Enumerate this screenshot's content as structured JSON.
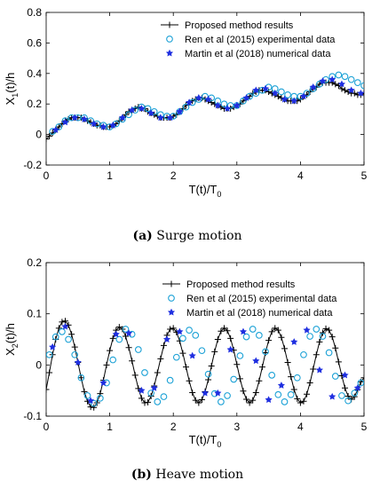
{
  "chart_data": [
    {
      "type": "line",
      "caption": {
        "letter": "(a)",
        "text": "Surge motion"
      },
      "xlabel": "T(t)/T",
      "xlabel_sub": "0",
      "ylabel": "X",
      "ylabel_sub": "1",
      "ylabel_suffix": "(t)/h",
      "xlim": [
        0,
        5
      ],
      "ylim": [
        -0.2,
        0.8
      ],
      "xticks": [
        "0",
        "1",
        "2",
        "3",
        "4",
        "5"
      ],
      "xtick_values": [
        0,
        1,
        2,
        3,
        4,
        5
      ],
      "yticks": [
        "-0.2",
        "0",
        "0.2",
        "0.4",
        "0.6",
        "0.8"
      ],
      "ytick_values": [
        -0.2,
        0,
        0.2,
        0.4,
        0.6,
        0.8
      ],
      "grid": false,
      "legend_position": "top-right",
      "series": [
        {
          "name": "Proposed method results",
          "marker": "plus",
          "color": "#000000",
          "x": [
            0.0,
            0.05,
            0.1,
            0.15,
            0.2,
            0.25,
            0.3,
            0.35,
            0.4,
            0.45,
            0.5,
            0.55,
            0.6,
            0.65,
            0.7,
            0.75,
            0.8,
            0.85,
            0.9,
            0.95,
            1.0,
            1.05,
            1.1,
            1.15,
            1.2,
            1.25,
            1.3,
            1.35,
            1.4,
            1.45,
            1.5,
            1.55,
            1.6,
            1.65,
            1.7,
            1.75,
            1.8,
            1.85,
            1.9,
            1.95,
            2.0,
            2.05,
            2.1,
            2.15,
            2.2,
            2.25,
            2.3,
            2.35,
            2.4,
            2.45,
            2.5,
            2.55,
            2.6,
            2.65,
            2.7,
            2.75,
            2.8,
            2.85,
            2.9,
            2.95,
            3.0,
            3.05,
            3.1,
            3.15,
            3.2,
            3.25,
            3.3,
            3.35,
            3.4,
            3.45,
            3.5,
            3.55,
            3.6,
            3.65,
            3.7,
            3.75,
            3.8,
            3.85,
            3.9,
            3.95,
            4.0,
            4.05,
            4.1,
            4.15,
            4.2,
            4.25,
            4.3,
            4.35,
            4.4,
            4.45,
            4.5,
            4.55,
            4.6,
            4.65,
            4.7,
            4.75,
            4.8,
            4.85,
            4.9,
            4.95,
            5.0
          ],
          "y": [
            -0.03,
            -0.01,
            0.01,
            0.03,
            0.05,
            0.07,
            0.09,
            0.1,
            0.11,
            0.11,
            0.11,
            0.11,
            0.1,
            0.09,
            0.08,
            0.07,
            0.06,
            0.06,
            0.05,
            0.05,
            0.05,
            0.06,
            0.07,
            0.09,
            0.11,
            0.13,
            0.15,
            0.16,
            0.17,
            0.18,
            0.17,
            0.17,
            0.15,
            0.14,
            0.13,
            0.12,
            0.11,
            0.11,
            0.11,
            0.11,
            0.12,
            0.13,
            0.15,
            0.17,
            0.19,
            0.21,
            0.22,
            0.23,
            0.24,
            0.24,
            0.23,
            0.22,
            0.21,
            0.2,
            0.19,
            0.18,
            0.17,
            0.17,
            0.17,
            0.18,
            0.19,
            0.2,
            0.22,
            0.24,
            0.25,
            0.27,
            0.28,
            0.29,
            0.29,
            0.29,
            0.28,
            0.27,
            0.26,
            0.25,
            0.24,
            0.23,
            0.22,
            0.22,
            0.22,
            0.22,
            0.23,
            0.25,
            0.26,
            0.28,
            0.3,
            0.31,
            0.33,
            0.34,
            0.34,
            0.34,
            0.34,
            0.33,
            0.32,
            0.3,
            0.29,
            0.28,
            0.27,
            0.27,
            0.26,
            0.26,
            0.27
          ]
        },
        {
          "name": "Ren et al (2015) experimental data",
          "marker": "circle-open",
          "color": "#1ba1d6",
          "x": [
            0.1,
            0.2,
            0.3,
            0.4,
            0.5,
            0.6,
            0.7,
            0.8,
            0.9,
            1.0,
            1.1,
            1.2,
            1.3,
            1.4,
            1.5,
            1.6,
            1.7,
            1.8,
            1.9,
            2.0,
            2.1,
            2.2,
            2.3,
            2.4,
            2.5,
            2.6,
            2.7,
            2.8,
            2.9,
            3.0,
            3.1,
            3.2,
            3.3,
            3.4,
            3.5,
            3.6,
            3.7,
            3.8,
            3.9,
            4.0,
            4.1,
            4.2,
            4.3,
            4.4,
            4.5,
            4.6,
            4.7,
            4.8,
            4.9,
            5.0
          ],
          "y": [
            0.02,
            0.05,
            0.09,
            0.11,
            0.11,
            0.11,
            0.09,
            0.07,
            0.06,
            0.05,
            0.07,
            0.1,
            0.13,
            0.16,
            0.18,
            0.17,
            0.15,
            0.13,
            0.12,
            0.12,
            0.15,
            0.18,
            0.21,
            0.23,
            0.25,
            0.24,
            0.22,
            0.2,
            0.19,
            0.19,
            0.22,
            0.25,
            0.27,
            0.29,
            0.31,
            0.3,
            0.28,
            0.26,
            0.25,
            0.25,
            0.27,
            0.3,
            0.33,
            0.36,
            0.38,
            0.39,
            0.38,
            0.36,
            0.34,
            0.32
          ]
        },
        {
          "name": "Martin et al (2018) numerical data",
          "marker": "star-filled",
          "color": "#1f2fe0",
          "x": [
            0.15,
            0.3,
            0.45,
            0.6,
            0.75,
            0.9,
            1.05,
            1.2,
            1.35,
            1.5,
            1.65,
            1.8,
            1.95,
            2.1,
            2.25,
            2.4,
            2.55,
            2.7,
            2.85,
            3.0,
            3.15,
            3.3,
            3.45,
            3.6,
            3.75,
            3.9,
            4.05,
            4.2,
            4.35,
            4.5,
            4.65,
            4.8,
            4.95
          ],
          "y": [
            0.03,
            0.08,
            0.11,
            0.1,
            0.07,
            0.05,
            0.06,
            0.11,
            0.16,
            0.17,
            0.14,
            0.11,
            0.11,
            0.15,
            0.21,
            0.24,
            0.23,
            0.19,
            0.17,
            0.19,
            0.24,
            0.29,
            0.3,
            0.27,
            0.23,
            0.22,
            0.25,
            0.31,
            0.35,
            0.36,
            0.33,
            0.29,
            0.27
          ]
        }
      ]
    },
    {
      "type": "line",
      "caption": {
        "letter": "(b)",
        "text": "Heave motion"
      },
      "xlabel": "T(t)/T",
      "xlabel_sub": "0",
      "ylabel": "X",
      "ylabel_sub": "2",
      "ylabel_suffix": "(t)/h",
      "xlim": [
        0,
        5
      ],
      "ylim": [
        -0.1,
        0.2
      ],
      "xticks": [
        "0",
        "1",
        "2",
        "3",
        "4",
        "5"
      ],
      "xtick_values": [
        0,
        1,
        2,
        3,
        4,
        5
      ],
      "yticks": [
        "-0.1",
        "0",
        "0.1",
        "0.2"
      ],
      "ytick_values": [
        -0.1,
        0,
        0.1,
        0.2
      ],
      "grid": false,
      "legend_position": "top-right",
      "series": [
        {
          "name": "Proposed method results",
          "marker": "plus",
          "color": "#000000",
          "x": [
            0.0,
            0.05,
            0.1,
            0.15,
            0.2,
            0.25,
            0.3,
            0.35,
            0.4,
            0.45,
            0.5,
            0.55,
            0.6,
            0.65,
            0.7,
            0.75,
            0.8,
            0.85,
            0.9,
            0.95,
            1.0,
            1.05,
            1.1,
            1.15,
            1.2,
            1.25,
            1.3,
            1.35,
            1.4,
            1.45,
            1.5,
            1.55,
            1.6,
            1.65,
            1.7,
            1.75,
            1.8,
            1.85,
            1.9,
            1.95,
            2.0,
            2.05,
            2.1,
            2.15,
            2.2,
            2.25,
            2.3,
            2.35,
            2.4,
            2.45,
            2.5,
            2.55,
            2.6,
            2.65,
            2.7,
            2.75,
            2.8,
            2.85,
            2.9,
            2.95,
            3.0,
            3.05,
            3.1,
            3.15,
            3.2,
            3.25,
            3.3,
            3.35,
            3.4,
            3.45,
            3.5,
            3.55,
            3.6,
            3.65,
            3.7,
            3.75,
            3.8,
            3.85,
            3.9,
            3.95,
            4.0,
            4.05,
            4.1,
            4.15,
            4.2,
            4.25,
            4.3,
            4.35,
            4.4,
            4.45,
            4.5,
            4.55,
            4.6,
            4.65,
            4.7,
            4.75,
            4.8,
            4.85,
            4.9,
            4.95,
            5.0
          ],
          "y": [
            -0.048,
            -0.015,
            0.02,
            0.05,
            0.072,
            0.084,
            0.086,
            0.078,
            0.06,
            0.035,
            0.005,
            -0.025,
            -0.052,
            -0.071,
            -0.082,
            -0.083,
            -0.074,
            -0.056,
            -0.03,
            0.0,
            0.028,
            0.052,
            0.068,
            0.074,
            0.07,
            0.056,
            0.034,
            0.008,
            -0.02,
            -0.046,
            -0.065,
            -0.074,
            -0.073,
            -0.061,
            -0.041,
            -0.015,
            0.012,
            0.038,
            0.058,
            0.07,
            0.072,
            0.064,
            0.047,
            0.023,
            -0.004,
            -0.031,
            -0.054,
            -0.069,
            -0.074,
            -0.068,
            -0.052,
            -0.029,
            -0.002,
            0.026,
            0.05,
            0.066,
            0.072,
            0.067,
            0.052,
            0.029,
            0.001,
            -0.027,
            -0.051,
            -0.067,
            -0.074,
            -0.069,
            -0.054,
            -0.031,
            -0.004,
            0.024,
            0.048,
            0.065,
            0.072,
            0.068,
            0.054,
            0.032,
            0.005,
            -0.023,
            -0.048,
            -0.066,
            -0.074,
            -0.071,
            -0.057,
            -0.035,
            -0.008,
            0.02,
            0.045,
            0.063,
            0.071,
            0.068,
            0.055,
            0.033,
            0.006,
            -0.021,
            -0.045,
            -0.061,
            -0.067,
            -0.062,
            -0.048,
            -0.033,
            -0.025
          ]
        },
        {
          "name": "Ren et al (2015) experimental data",
          "marker": "circle-open",
          "color": "#1ba1d6",
          "x": [
            0.05,
            0.15,
            0.25,
            0.35,
            0.45,
            0.55,
            0.65,
            0.75,
            0.85,
            0.95,
            1.05,
            1.15,
            1.25,
            1.35,
            1.45,
            1.55,
            1.65,
            1.75,
            1.85,
            1.95,
            2.05,
            2.15,
            2.25,
            2.35,
            2.45,
            2.55,
            2.65,
            2.75,
            2.85,
            2.95,
            3.05,
            3.15,
            3.25,
            3.35,
            3.45,
            3.55,
            3.65,
            3.75,
            3.85,
            3.95,
            4.05,
            4.15,
            4.25,
            4.35,
            4.45,
            4.55,
            4.65,
            4.75,
            4.85,
            4.95
          ],
          "y": [
            0.02,
            0.055,
            0.065,
            0.05,
            0.02,
            -0.025,
            -0.06,
            -0.075,
            -0.065,
            -0.035,
            0.01,
            0.05,
            0.07,
            0.06,
            0.03,
            -0.015,
            -0.055,
            -0.072,
            -0.062,
            -0.03,
            0.015,
            0.052,
            0.068,
            0.058,
            0.028,
            -0.018,
            -0.056,
            -0.072,
            -0.06,
            -0.028,
            0.018,
            0.055,
            0.07,
            0.058,
            0.026,
            -0.02,
            -0.058,
            -0.072,
            -0.058,
            -0.025,
            0.02,
            0.056,
            0.07,
            0.056,
            0.024,
            -0.022,
            -0.06,
            -0.07,
            -0.055,
            -0.035
          ]
        },
        {
          "name": "Martin et al (2018) numerical data",
          "marker": "star-filled",
          "color": "#1f2fe0",
          "x": [
            0.1,
            0.3,
            0.5,
            0.7,
            0.9,
            1.1,
            1.3,
            1.5,
            1.7,
            1.9,
            2.1,
            2.3,
            2.5,
            2.7,
            2.9,
            3.1,
            3.3,
            3.5,
            3.7,
            3.9,
            4.1,
            4.3,
            4.5,
            4.7,
            4.9
          ],
          "y": [
            0.035,
            0.075,
            0.005,
            -0.07,
            -0.035,
            0.06,
            0.062,
            -0.05,
            -0.045,
            0.05,
            0.065,
            0.018,
            -0.055,
            -0.055,
            0.03,
            0.065,
            0.008,
            -0.068,
            -0.04,
            0.045,
            0.068,
            -0.01,
            -0.062,
            -0.02,
            -0.045
          ]
        }
      ]
    }
  ]
}
